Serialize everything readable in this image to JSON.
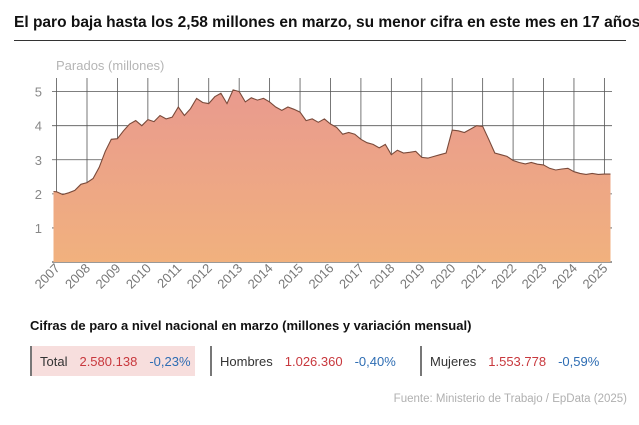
{
  "title": "El paro baja hasta los 2,58 millones en marzo, su menor cifra en este mes en 17 años",
  "chart_data": {
    "type": "area",
    "ylabel": "Parados (millones)",
    "xlabel": "",
    "ylim": [
      0,
      5.4
    ],
    "yticks": [
      1,
      2,
      3,
      4,
      5
    ],
    "xlim": [
      2006.85,
      2025.25
    ],
    "xticks": [
      2007,
      2008,
      2009,
      2010,
      2011,
      2012,
      2013,
      2014,
      2015,
      2016,
      2017,
      2018,
      2019,
      2020,
      2021,
      2022,
      2023,
      2024,
      2025
    ],
    "grid": true,
    "colors": {
      "fill_top": "#e99a8e",
      "fill_bottom": "#f1b17e",
      "line": "#7a4a3a",
      "grid": "#555555"
    },
    "x": [
      2006.9,
      2007.0,
      2007.2,
      2007.4,
      2007.6,
      2007.8,
      2008.0,
      2008.2,
      2008.4,
      2008.6,
      2008.8,
      2009.0,
      2009.2,
      2009.4,
      2009.6,
      2009.8,
      2010.0,
      2010.2,
      2010.4,
      2010.6,
      2010.8,
      2011.0,
      2011.2,
      2011.4,
      2011.6,
      2011.8,
      2012.0,
      2012.2,
      2012.4,
      2012.6,
      2012.8,
      2013.0,
      2013.2,
      2013.4,
      2013.6,
      2013.8,
      2014.0,
      2014.2,
      2014.4,
      2014.6,
      2014.8,
      2015.0,
      2015.2,
      2015.4,
      2015.6,
      2015.8,
      2016.0,
      2016.2,
      2016.4,
      2016.6,
      2016.8,
      2017.0,
      2017.2,
      2017.4,
      2017.6,
      2017.8,
      2018.0,
      2018.2,
      2018.4,
      2018.6,
      2018.8,
      2019.0,
      2019.2,
      2019.4,
      2019.6,
      2019.8,
      2020.0,
      2020.2,
      2020.4,
      2020.6,
      2020.8,
      2021.0,
      2021.2,
      2021.4,
      2021.6,
      2021.8,
      2022.0,
      2022.2,
      2022.4,
      2022.6,
      2022.8,
      2023.0,
      2023.2,
      2023.4,
      2023.6,
      2023.8,
      2024.0,
      2024.2,
      2024.4,
      2024.6,
      2024.8,
      2025.0,
      2025.2
    ],
    "values": [
      2.07,
      2.06,
      1.98,
      2.03,
      2.1,
      2.28,
      2.33,
      2.45,
      2.78,
      3.25,
      3.6,
      3.62,
      3.85,
      4.05,
      4.15,
      4.0,
      4.18,
      4.12,
      4.3,
      4.2,
      4.25,
      4.55,
      4.3,
      4.5,
      4.8,
      4.68,
      4.65,
      4.85,
      4.95,
      4.65,
      5.05,
      5.0,
      4.7,
      4.82,
      4.75,
      4.8,
      4.7,
      4.55,
      4.45,
      4.55,
      4.48,
      4.4,
      4.15,
      4.2,
      4.1,
      4.2,
      4.05,
      3.95,
      3.75,
      3.8,
      3.75,
      3.6,
      3.5,
      3.45,
      3.35,
      3.45,
      3.15,
      3.28,
      3.2,
      3.22,
      3.25,
      3.07,
      3.05,
      3.1,
      3.15,
      3.2,
      3.87,
      3.85,
      3.8,
      3.9,
      4.0,
      3.98,
      3.6,
      3.2,
      3.15,
      3.1,
      2.98,
      2.92,
      2.88,
      2.92,
      2.87,
      2.85,
      2.75,
      2.7,
      2.73,
      2.75,
      2.65,
      2.6,
      2.57,
      2.6,
      2.57,
      2.58,
      2.58
    ]
  },
  "summary": {
    "heading": "Cifras de paro a nivel nacional en marzo (millones y variación mensual)",
    "items": [
      {
        "label": "Total",
        "value": "2.580.138",
        "change": "-0,23%"
      },
      {
        "label": "Hombres",
        "value": "1.026.360",
        "change": "-0,40%"
      },
      {
        "label": "Mujeres",
        "value": "1.553.778",
        "change": "-0,59%"
      }
    ]
  },
  "source": "Fuente: Ministerio de Trabajo / EpData (2025)"
}
